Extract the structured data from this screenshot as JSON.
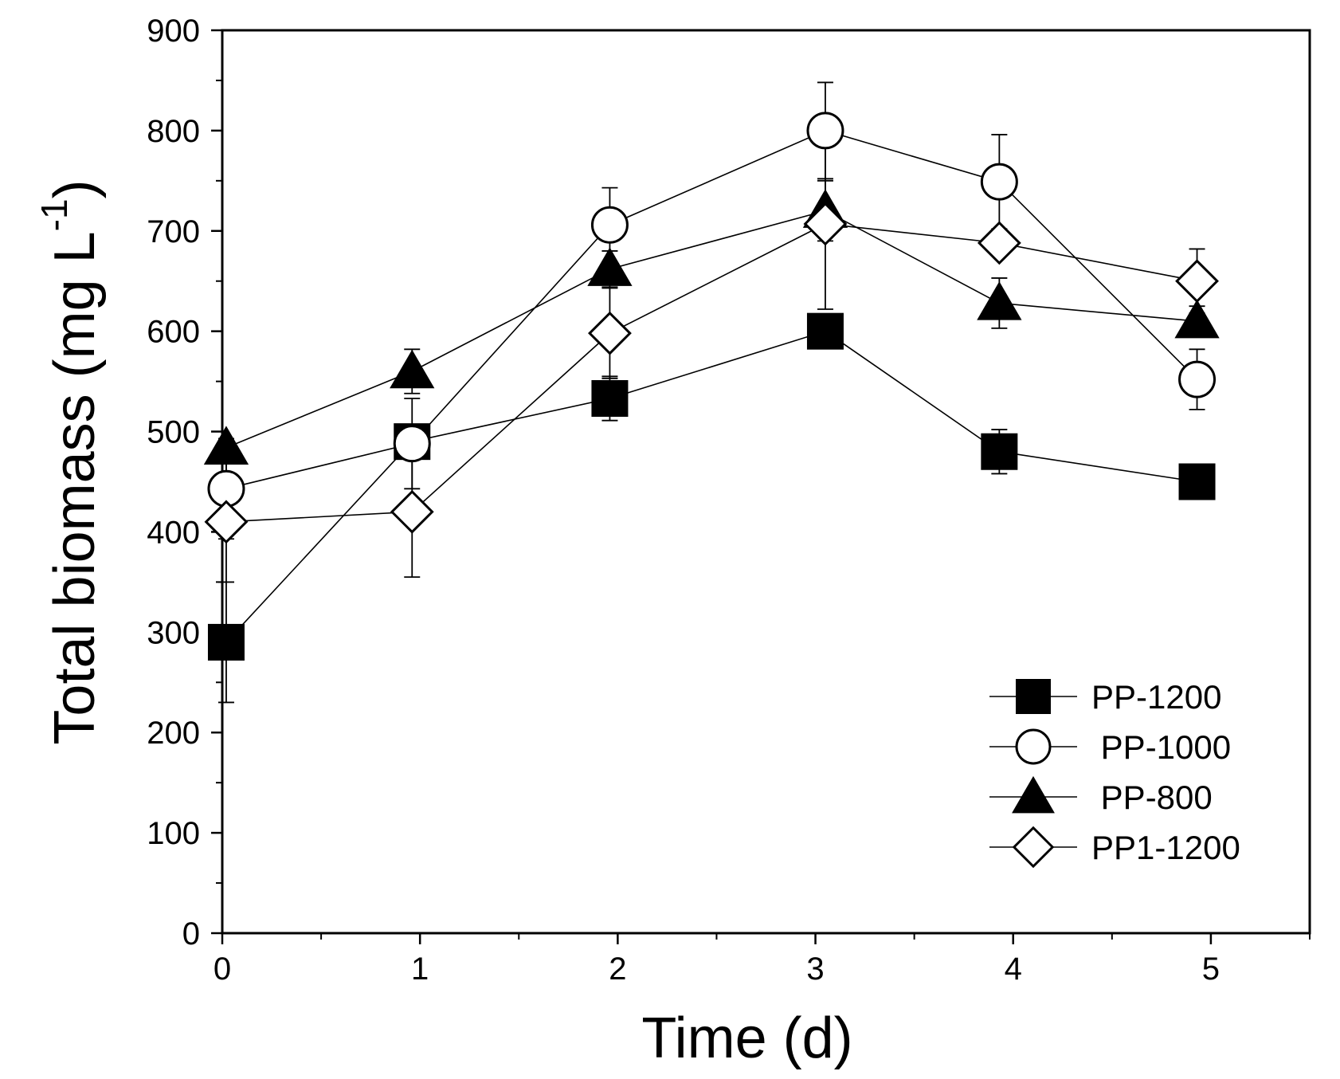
{
  "chart_data": {
    "type": "line",
    "title": "",
    "xlabel": "Time (d)",
    "ylabel_text": "Total biomass (mg L",
    "ylabel_sup": "-1",
    "ylabel_close": ")",
    "xlim": [
      0,
      5.5
    ],
    "ylim": [
      0,
      900
    ],
    "xticks": [
      0,
      1,
      2,
      3,
      4,
      5
    ],
    "xtick_labels": [
      "0",
      "1",
      "2",
      "3",
      "4",
      "5"
    ],
    "xminor": [
      0.5,
      1.5,
      2.5,
      3.5,
      4.5,
      5.5
    ],
    "yticks": [
      0,
      100,
      200,
      300,
      400,
      500,
      600,
      700,
      800,
      900
    ],
    "ytick_labels": [
      "0",
      "100",
      "200",
      "300",
      "400",
      "500",
      "600",
      "700",
      "800",
      "900"
    ],
    "yminor": [
      50,
      150,
      250,
      350,
      450,
      550,
      650,
      750,
      850
    ],
    "grid": false,
    "legend_position": "bottom-right",
    "series": [
      {
        "name": "PP-1200",
        "legend_label": "PP-1200",
        "marker": "square-filled",
        "x": [
          0.02,
          0.96,
          1.96,
          3.05,
          3.93,
          4.93
        ],
        "y": [
          290,
          490,
          533,
          600,
          480,
          450
        ],
        "err": [
          60,
          0,
          22,
          0,
          22,
          0
        ]
      },
      {
        "name": "PP-1000",
        "legend_label": " PP-1000",
        "marker": "circle-open",
        "x": [
          0.02,
          0.96,
          1.96,
          3.05,
          3.93,
          4.93
        ],
        "y": [
          443,
          488,
          706,
          800,
          749,
          552
        ],
        "err": [
          50,
          45,
          37,
          48,
          47,
          30
        ]
      },
      {
        "name": "PP-800",
        "legend_label": " PP-800",
        "marker": "triangle-filled",
        "x": [
          0.02,
          0.96,
          1.96,
          3.05,
          3.93,
          4.93
        ],
        "y": [
          484,
          560,
          662,
          720,
          628,
          610
        ],
        "err": [
          0,
          22,
          18,
          30,
          25,
          15
        ]
      },
      {
        "name": "PP1-1200",
        "legend_label": "PP1-1200",
        "marker": "diamond-open",
        "x": [
          0.02,
          0.96,
          1.96,
          3.05,
          3.93,
          4.93
        ],
        "y": [
          410,
          420,
          598,
          707,
          688,
          650
        ],
        "err": [
          60,
          65,
          45,
          85,
          0,
          32
        ]
      }
    ]
  }
}
